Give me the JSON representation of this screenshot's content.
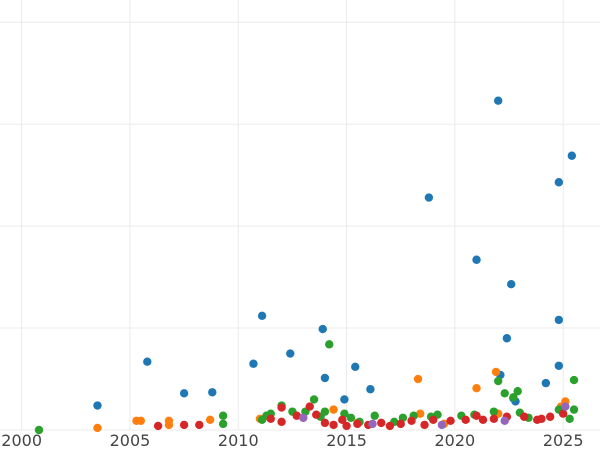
{
  "chart_data": {
    "type": "scatter",
    "title": "",
    "xlabel": "",
    "ylabel": "",
    "xlim": [
      1999,
      2026.7
    ],
    "ylim": [
      0,
      20.5
    ],
    "x_ticks": [
      "2000",
      "2005",
      "2010",
      "2015",
      "2020",
      "2025"
    ],
    "y_gridlines": [
      0,
      5,
      10,
      15,
      20
    ],
    "grid": true,
    "legend": "none",
    "series": [
      {
        "color": "#1f77b4",
        "points": [
          [
            2003.5,
            1.2
          ],
          [
            2005.8,
            3.35
          ],
          [
            2007.5,
            1.8
          ],
          [
            2008.8,
            1.85
          ],
          [
            2010.7,
            3.25
          ],
          [
            2011.1,
            5.6
          ],
          [
            2012.4,
            3.75
          ],
          [
            2013.9,
            4.95
          ],
          [
            2014.0,
            2.55
          ],
          [
            2014.9,
            1.5
          ],
          [
            2015.4,
            3.1
          ],
          [
            2016.1,
            2.0
          ],
          [
            2018.8,
            11.4
          ],
          [
            2021.0,
            8.35
          ],
          [
            2022.0,
            16.15
          ],
          [
            2022.1,
            2.7
          ],
          [
            2022.4,
            4.5
          ],
          [
            2022.6,
            7.15
          ],
          [
            2022.7,
            1.55
          ],
          [
            2022.8,
            1.4
          ],
          [
            2024.2,
            2.3
          ],
          [
            2024.8,
            3.15
          ],
          [
            2024.8,
            5.4
          ],
          [
            2024.8,
            12.15
          ],
          [
            2025.4,
            13.45
          ],
          [
            2025.0,
            1.1
          ]
        ]
      },
      {
        "color": "#ff7f0e",
        "points": [
          [
            2003.5,
            0.1
          ],
          [
            2005.3,
            0.45
          ],
          [
            2005.5,
            0.45
          ],
          [
            2006.8,
            0.45
          ],
          [
            2006.8,
            0.25
          ],
          [
            2008.7,
            0.5
          ],
          [
            2011.0,
            0.55
          ],
          [
            2013.0,
            0.6
          ],
          [
            2014.4,
            1.0
          ],
          [
            2015.5,
            0.35
          ],
          [
            2018.3,
            2.5
          ],
          [
            2018.4,
            0.8
          ],
          [
            2019.5,
            0.3
          ],
          [
            2021.0,
            2.05
          ],
          [
            2021.9,
            2.85
          ],
          [
            2022.0,
            0.8
          ],
          [
            2024.9,
            1.15
          ],
          [
            2025.1,
            1.4
          ]
        ]
      },
      {
        "color": "#2ca02c",
        "points": [
          [
            2000.8,
            0.0
          ],
          [
            2009.3,
            0.3
          ],
          [
            2009.3,
            0.7
          ],
          [
            2011.1,
            0.5
          ],
          [
            2011.3,
            0.7
          ],
          [
            2011.5,
            0.8
          ],
          [
            2012.0,
            1.2
          ],
          [
            2012.5,
            0.9
          ],
          [
            2013.1,
            0.9
          ],
          [
            2013.5,
            1.5
          ],
          [
            2013.8,
            0.65
          ],
          [
            2014.0,
            0.9
          ],
          [
            2014.2,
            4.2
          ],
          [
            2014.9,
            0.8
          ],
          [
            2015.2,
            0.6
          ],
          [
            2015.6,
            0.4
          ],
          [
            2016.3,
            0.7
          ],
          [
            2017.2,
            0.4
          ],
          [
            2017.6,
            0.6
          ],
          [
            2018.1,
            0.7
          ],
          [
            2018.9,
            0.65
          ],
          [
            2019.2,
            0.75
          ],
          [
            2020.3,
            0.7
          ],
          [
            2020.9,
            0.75
          ],
          [
            2021.8,
            0.9
          ],
          [
            2022.0,
            2.4
          ],
          [
            2022.3,
            1.8
          ],
          [
            2022.7,
            1.6
          ],
          [
            2022.9,
            1.9
          ],
          [
            2023.0,
            0.85
          ],
          [
            2023.4,
            0.6
          ],
          [
            2024.8,
            1.0
          ],
          [
            2025.3,
            0.55
          ],
          [
            2025.5,
            1.0
          ],
          [
            2025.5,
            2.45
          ]
        ]
      },
      {
        "color": "#d62728",
        "points": [
          [
            2006.3,
            0.2
          ],
          [
            2007.5,
            0.25
          ],
          [
            2008.2,
            0.25
          ],
          [
            2011.5,
            0.55
          ],
          [
            2012.0,
            0.4
          ],
          [
            2012.0,
            1.1
          ],
          [
            2012.7,
            0.7
          ],
          [
            2013.3,
            1.15
          ],
          [
            2013.6,
            0.75
          ],
          [
            2014.0,
            0.35
          ],
          [
            2014.4,
            0.25
          ],
          [
            2014.8,
            0.5
          ],
          [
            2015.0,
            0.2
          ],
          [
            2015.5,
            0.3
          ],
          [
            2016.0,
            0.25
          ],
          [
            2016.6,
            0.35
          ],
          [
            2017.0,
            0.2
          ],
          [
            2017.5,
            0.3
          ],
          [
            2018.0,
            0.45
          ],
          [
            2018.6,
            0.25
          ],
          [
            2019.0,
            0.5
          ],
          [
            2019.8,
            0.45
          ],
          [
            2020.5,
            0.5
          ],
          [
            2021.0,
            0.7
          ],
          [
            2021.3,
            0.5
          ],
          [
            2021.8,
            0.55
          ],
          [
            2022.4,
            0.65
          ],
          [
            2023.2,
            0.65
          ],
          [
            2023.8,
            0.5
          ],
          [
            2024.0,
            0.55
          ],
          [
            2024.4,
            0.65
          ],
          [
            2025.0,
            0.8
          ]
        ]
      },
      {
        "color": "#9467bd",
        "points": [
          [
            2013.0,
            0.6
          ],
          [
            2016.2,
            0.3
          ],
          [
            2019.4,
            0.25
          ],
          [
            2022.3,
            0.45
          ],
          [
            2025.1,
            1.15
          ]
        ]
      }
    ]
  }
}
